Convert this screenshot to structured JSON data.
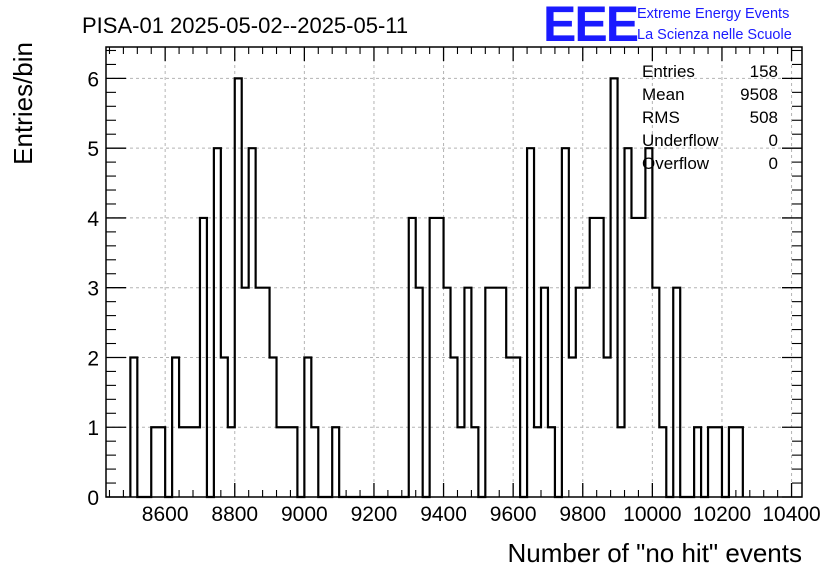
{
  "chart_data": {
    "type": "histogram",
    "title": "PISA-01 2025-05-02--2025-05-11",
    "xlabel": "Number of \"no hit\" events",
    "ylabel": "Entries/bin",
    "xlim": [
      8430,
      10430
    ],
    "ylim": [
      0,
      6.45
    ],
    "bin_width": 20,
    "grid": true,
    "x_ticks": [
      8600,
      8800,
      9000,
      9200,
      9400,
      9600,
      9800,
      10000,
      10200,
      10400
    ],
    "y_ticks": [
      0,
      1,
      2,
      3,
      4,
      5,
      6
    ],
    "bins": [
      {
        "x": 8500,
        "y": 2
      },
      {
        "x": 8520,
        "y": 0
      },
      {
        "x": 8540,
        "y": 0
      },
      {
        "x": 8560,
        "y": 1
      },
      {
        "x": 8580,
        "y": 1
      },
      {
        "x": 8600,
        "y": 0
      },
      {
        "x": 8620,
        "y": 2
      },
      {
        "x": 8640,
        "y": 1
      },
      {
        "x": 8660,
        "y": 1
      },
      {
        "x": 8680,
        "y": 1
      },
      {
        "x": 8700,
        "y": 4
      },
      {
        "x": 8720,
        "y": 0
      },
      {
        "x": 8740,
        "y": 5
      },
      {
        "x": 8760,
        "y": 2
      },
      {
        "x": 8780,
        "y": 1
      },
      {
        "x": 8800,
        "y": 6
      },
      {
        "x": 8820,
        "y": 3
      },
      {
        "x": 8840,
        "y": 5
      },
      {
        "x": 8860,
        "y": 3
      },
      {
        "x": 8880,
        "y": 3
      },
      {
        "x": 8900,
        "y": 2
      },
      {
        "x": 8920,
        "y": 1
      },
      {
        "x": 8940,
        "y": 1
      },
      {
        "x": 8960,
        "y": 1
      },
      {
        "x": 8980,
        "y": 0
      },
      {
        "x": 9000,
        "y": 2
      },
      {
        "x": 9020,
        "y": 1
      },
      {
        "x": 9040,
        "y": 0
      },
      {
        "x": 9060,
        "y": 0
      },
      {
        "x": 9080,
        "y": 1
      },
      {
        "x": 9100,
        "y": 0
      },
      {
        "x": 9120,
        "y": 0
      },
      {
        "x": 9140,
        "y": 0
      },
      {
        "x": 9160,
        "y": 0
      },
      {
        "x": 9180,
        "y": 0
      },
      {
        "x": 9200,
        "y": 0
      },
      {
        "x": 9220,
        "y": 0
      },
      {
        "x": 9240,
        "y": 0
      },
      {
        "x": 9260,
        "y": 0
      },
      {
        "x": 9280,
        "y": 0
      },
      {
        "x": 9300,
        "y": 4
      },
      {
        "x": 9320,
        "y": 3
      },
      {
        "x": 9340,
        "y": 0
      },
      {
        "x": 9360,
        "y": 4
      },
      {
        "x": 9380,
        "y": 4
      },
      {
        "x": 9400,
        "y": 3
      },
      {
        "x": 9420,
        "y": 2
      },
      {
        "x": 9440,
        "y": 1
      },
      {
        "x": 9460,
        "y": 3
      },
      {
        "x": 9480,
        "y": 1
      },
      {
        "x": 9500,
        "y": 0
      },
      {
        "x": 9520,
        "y": 3
      },
      {
        "x": 9540,
        "y": 3
      },
      {
        "x": 9560,
        "y": 3
      },
      {
        "x": 9580,
        "y": 2
      },
      {
        "x": 9600,
        "y": 2
      },
      {
        "x": 9620,
        "y": 0
      },
      {
        "x": 9640,
        "y": 5
      },
      {
        "x": 9660,
        "y": 1
      },
      {
        "x": 9680,
        "y": 3
      },
      {
        "x": 9700,
        "y": 1
      },
      {
        "x": 9720,
        "y": 0
      },
      {
        "x": 9740,
        "y": 5
      },
      {
        "x": 9760,
        "y": 2
      },
      {
        "x": 9780,
        "y": 3
      },
      {
        "x": 9800,
        "y": 3
      },
      {
        "x": 9820,
        "y": 4
      },
      {
        "x": 9840,
        "y": 4
      },
      {
        "x": 9860,
        "y": 2
      },
      {
        "x": 9880,
        "y": 6
      },
      {
        "x": 9900,
        "y": 1
      },
      {
        "x": 9920,
        "y": 5
      },
      {
        "x": 9940,
        "y": 4
      },
      {
        "x": 9960,
        "y": 4
      },
      {
        "x": 9980,
        "y": 5
      },
      {
        "x": 10000,
        "y": 3
      },
      {
        "x": 10020,
        "y": 1
      },
      {
        "x": 10040,
        "y": 0
      },
      {
        "x": 10060,
        "y": 3
      },
      {
        "x": 10080,
        "y": 0
      },
      {
        "x": 10100,
        "y": 0
      },
      {
        "x": 10120,
        "y": 1
      },
      {
        "x": 10140,
        "y": 0
      },
      {
        "x": 10160,
        "y": 1
      },
      {
        "x": 10180,
        "y": 1
      },
      {
        "x": 10200,
        "y": 0
      },
      {
        "x": 10220,
        "y": 1
      },
      {
        "x": 10240,
        "y": 1
      }
    ],
    "stats": {
      "entries_label": "Entries",
      "entries": "158",
      "mean_label": "Mean",
      "mean": "9508",
      "rms_label": "RMS",
      "rms": "508",
      "underflow_label": "Underflow",
      "underflow": "0",
      "overflow_label": "Overflow",
      "overflow": "0"
    }
  },
  "logo": {
    "text": "EEE",
    "line1": "Extreme Energy Events",
    "line2": "La Scienza nelle Scuole",
    "color": "#1a1aff"
  },
  "colors": {
    "histogram": "#000000",
    "grid": "#b4b4b4"
  }
}
